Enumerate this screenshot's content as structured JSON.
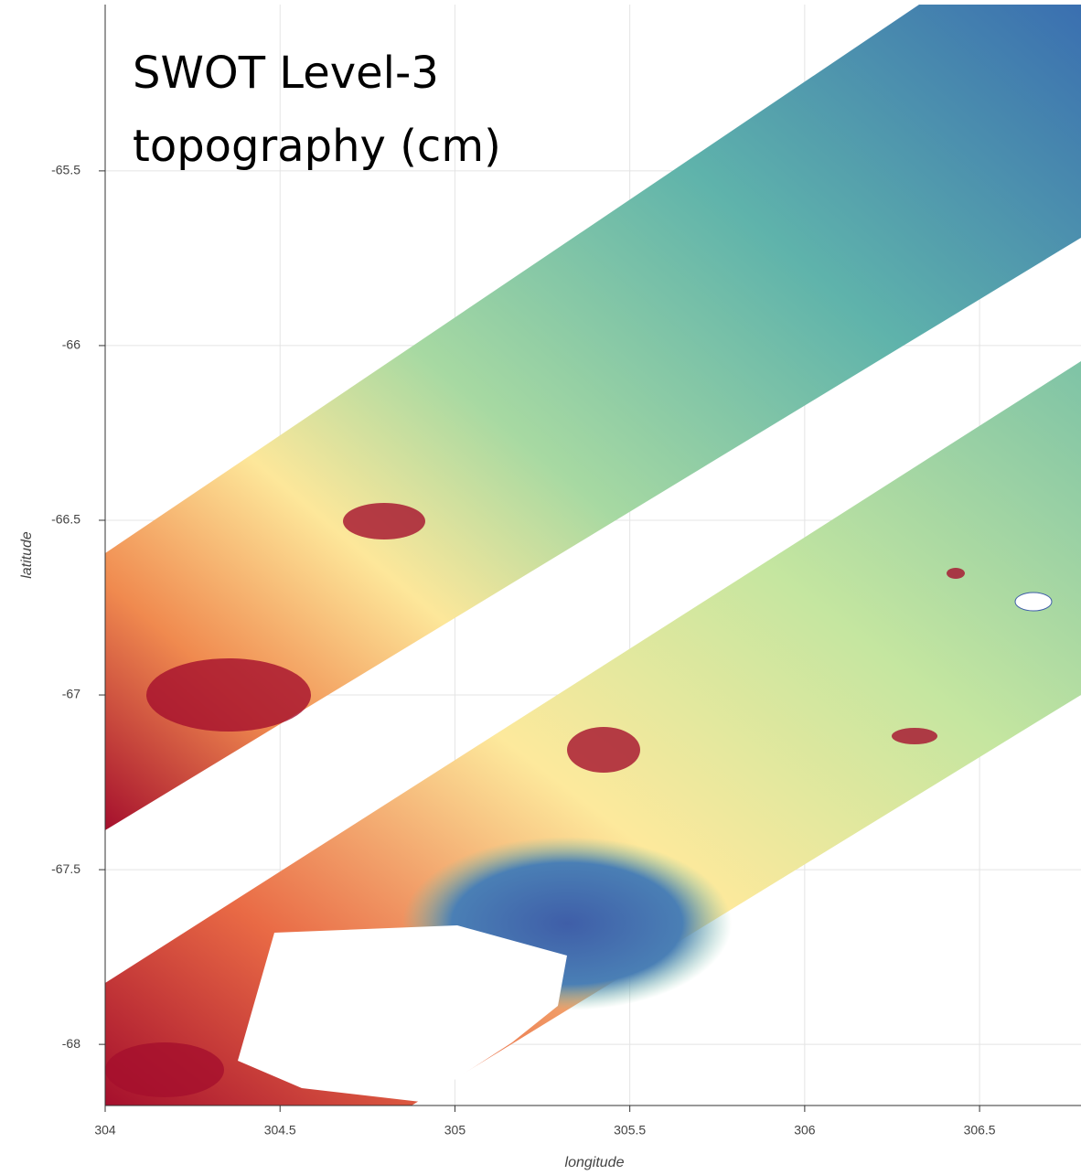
{
  "chart_data": {
    "type": "heatmap",
    "title": "SWOT Level-3 topography (cm)",
    "x_label": "longitude",
    "y_label": "latitude",
    "xlim": [
      304,
      306.79
    ],
    "ylim": [
      -68.175,
      -65.024
    ],
    "xticks": [
      304,
      304.5,
      305,
      305.5,
      306,
      306.5
    ],
    "yticks": [
      -65.5,
      -66,
      -66.5,
      -67,
      -67.5,
      -68
    ],
    "grid": true
  }
}
